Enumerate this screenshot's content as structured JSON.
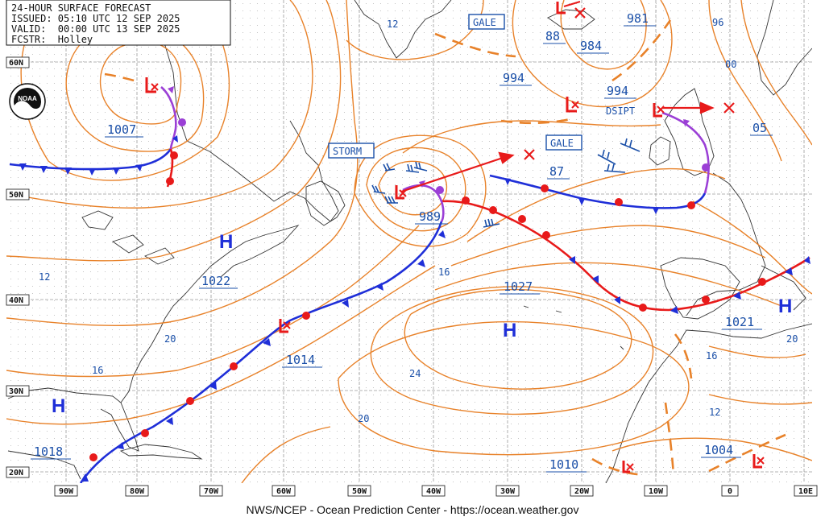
{
  "header": {
    "title": "24-HOUR SURFACE FORECAST",
    "issued": "ISSUED: 05:10 UTC 12 SEP 2025",
    "valid": "VALID:  00:00 UTC 13 SEP 2025",
    "forecaster": "FCSTR:  Holley"
  },
  "logo": {
    "text": "NOAA"
  },
  "footer": {
    "credit": "NWS/NCEP - Ocean Prediction Center - https://ocean.weather.gov"
  },
  "lat_labels": [
    "60N",
    "50N",
    "40N",
    "30N",
    "20N"
  ],
  "lon_labels": [
    "90W",
    "80W",
    "70W",
    "60W",
    "50W",
    "40W",
    "30W",
    "20W",
    "10W",
    "0",
    "10E"
  ],
  "pressure_centers": [
    {
      "kind": "H",
      "value": "1022"
    },
    {
      "kind": "H",
      "value": "1027"
    },
    {
      "kind": "H",
      "value": "1021"
    },
    {
      "kind": "H",
      "value": "1018"
    },
    {
      "kind": "L",
      "value": "1007"
    },
    {
      "kind": "L",
      "value": "989"
    },
    {
      "kind": "L",
      "value": "994"
    },
    {
      "kind": "L",
      "value": "981"
    },
    {
      "kind": "L",
      "value": "984"
    },
    {
      "kind": "L",
      "value": "1014"
    },
    {
      "kind": "L",
      "value": "1010"
    },
    {
      "kind": "L",
      "value": "1004"
    }
  ],
  "extra_values": [
    "994",
    "88",
    "87",
    "05",
    "00",
    "96"
  ],
  "warnings": [
    "GALE",
    "GALE",
    "STORM"
  ],
  "dissipating_label": "DSIPT",
  "isobar_labels": [
    "12",
    "12",
    "16",
    "20",
    "16",
    "24",
    "20",
    "16",
    "12",
    "20"
  ],
  "colors": {
    "isobar": "#e8822a",
    "cold_front": "#1f2fd8",
    "warm_front": "#e81a1a",
    "occluded": "#9b3fd6",
    "label_blue": "#1a4fa8",
    "grid": "#9a9a9a",
    "coast": "#333333"
  }
}
